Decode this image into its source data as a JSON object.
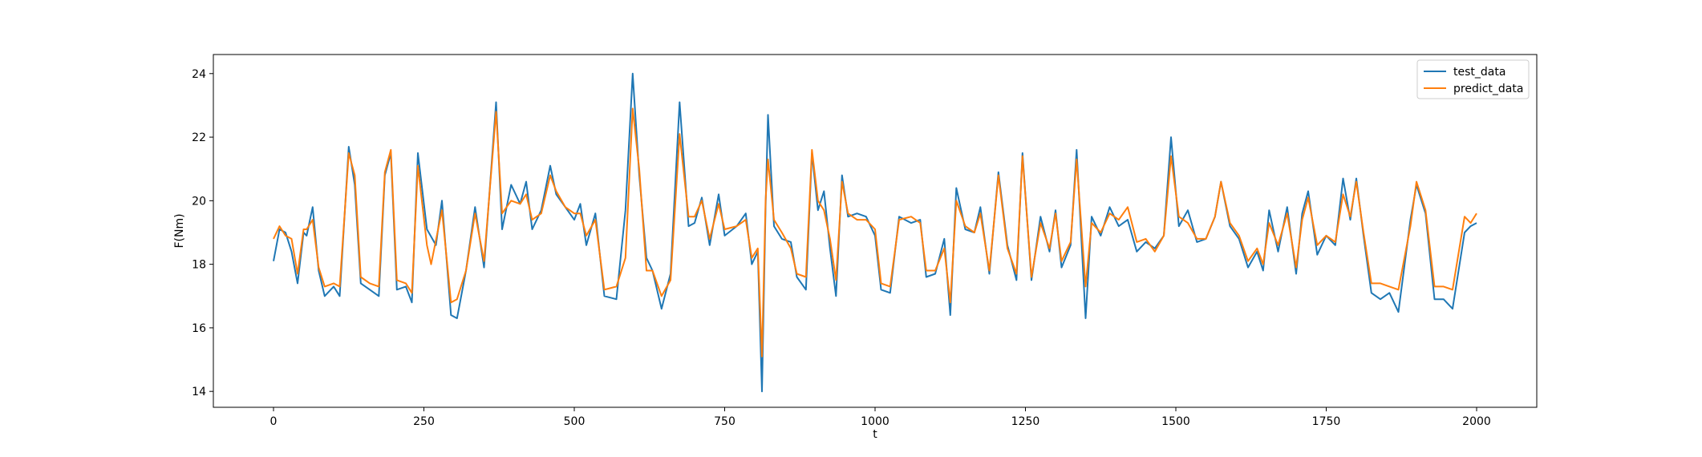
{
  "chart_data": {
    "type": "line",
    "title": "",
    "xlabel": "t",
    "ylabel": "F(Nm)",
    "xlim": [
      -100,
      2100
    ],
    "ylim": [
      13.5,
      24.6
    ],
    "xticks": [
      0,
      250,
      500,
      750,
      1000,
      1250,
      1500,
      1750,
      2000
    ],
    "xtick_labels": [
      "0",
      "250",
      "500",
      "750",
      "1000",
      "1250",
      "1500",
      "1750",
      "2000"
    ],
    "yticks": [
      14,
      16,
      18,
      20,
      22,
      24
    ],
    "ytick_labels": [
      "14",
      "16",
      "18",
      "20",
      "22",
      "24"
    ],
    "grid": false,
    "legend_position": "top-right",
    "series": [
      {
        "name": "test_data",
        "color": "#1f77b4",
        "points": [
          [
            0,
            18.1
          ],
          [
            10,
            19.1
          ],
          [
            20,
            19.0
          ],
          [
            30,
            18.4
          ],
          [
            40,
            17.4
          ],
          [
            50,
            19.0
          ],
          [
            55,
            18.9
          ],
          [
            65,
            19.8
          ],
          [
            75,
            17.8
          ],
          [
            85,
            17.0
          ],
          [
            100,
            17.3
          ],
          [
            110,
            17.0
          ],
          [
            125,
            21.7
          ],
          [
            135,
            20.5
          ],
          [
            145,
            17.4
          ],
          [
            160,
            17.2
          ],
          [
            175,
            17.0
          ],
          [
            185,
            20.8
          ],
          [
            195,
            21.5
          ],
          [
            205,
            17.2
          ],
          [
            220,
            17.3
          ],
          [
            230,
            16.8
          ],
          [
            240,
            21.5
          ],
          [
            255,
            19.1
          ],
          [
            270,
            18.6
          ],
          [
            280,
            20.0
          ],
          [
            295,
            16.4
          ],
          [
            305,
            16.3
          ],
          [
            320,
            17.8
          ],
          [
            335,
            19.8
          ],
          [
            350,
            17.9
          ],
          [
            370,
            23.1
          ],
          [
            380,
            19.1
          ],
          [
            395,
            20.5
          ],
          [
            410,
            19.9
          ],
          [
            420,
            20.6
          ],
          [
            430,
            19.1
          ],
          [
            445,
            19.7
          ],
          [
            460,
            21.1
          ],
          [
            470,
            20.2
          ],
          [
            485,
            19.8
          ],
          [
            500,
            19.4
          ],
          [
            510,
            19.9
          ],
          [
            520,
            18.6
          ],
          [
            535,
            19.6
          ],
          [
            550,
            17.0
          ],
          [
            570,
            16.9
          ],
          [
            585,
            19.7
          ],
          [
            597,
            24.0
          ],
          [
            608,
            20.8
          ],
          [
            620,
            18.2
          ],
          [
            630,
            17.8
          ],
          [
            645,
            16.6
          ],
          [
            660,
            17.7
          ],
          [
            675,
            23.1
          ],
          [
            690,
            19.2
          ],
          [
            700,
            19.3
          ],
          [
            712,
            20.1
          ],
          [
            725,
            18.6
          ],
          [
            740,
            20.2
          ],
          [
            750,
            18.9
          ],
          [
            770,
            19.2
          ],
          [
            785,
            19.6
          ],
          [
            795,
            18.0
          ],
          [
            805,
            18.4
          ],
          [
            812,
            14.0
          ],
          [
            818,
            19.8
          ],
          [
            822,
            22.7
          ],
          [
            832,
            19.2
          ],
          [
            845,
            18.8
          ],
          [
            860,
            18.7
          ],
          [
            870,
            17.6
          ],
          [
            885,
            17.2
          ],
          [
            895,
            21.5
          ],
          [
            905,
            19.7
          ],
          [
            915,
            20.3
          ],
          [
            925,
            18.5
          ],
          [
            935,
            17.0
          ],
          [
            945,
            20.8
          ],
          [
            955,
            19.5
          ],
          [
            970,
            19.6
          ],
          [
            985,
            19.5
          ],
          [
            1000,
            18.9
          ],
          [
            1010,
            17.2
          ],
          [
            1025,
            17.1
          ],
          [
            1040,
            19.5
          ],
          [
            1060,
            19.3
          ],
          [
            1075,
            19.4
          ],
          [
            1085,
            17.6
          ],
          [
            1100,
            17.7
          ],
          [
            1115,
            18.8
          ],
          [
            1125,
            16.4
          ],
          [
            1135,
            20.4
          ],
          [
            1150,
            19.1
          ],
          [
            1165,
            19.0
          ],
          [
            1175,
            19.8
          ],
          [
            1190,
            17.7
          ],
          [
            1205,
            20.9
          ],
          [
            1220,
            18.6
          ],
          [
            1235,
            17.5
          ],
          [
            1245,
            21.5
          ],
          [
            1260,
            17.5
          ],
          [
            1275,
            19.5
          ],
          [
            1290,
            18.4
          ],
          [
            1300,
            19.7
          ],
          [
            1310,
            17.9
          ],
          [
            1325,
            18.6
          ],
          [
            1335,
            21.6
          ],
          [
            1350,
            16.3
          ],
          [
            1360,
            19.5
          ],
          [
            1375,
            18.9
          ],
          [
            1390,
            19.8
          ],
          [
            1405,
            19.2
          ],
          [
            1420,
            19.4
          ],
          [
            1435,
            18.4
          ],
          [
            1450,
            18.7
          ],
          [
            1465,
            18.5
          ],
          [
            1480,
            18.9
          ],
          [
            1492,
            22.0
          ],
          [
            1505,
            19.2
          ],
          [
            1520,
            19.7
          ],
          [
            1535,
            18.7
          ],
          [
            1550,
            18.8
          ],
          [
            1565,
            19.5
          ],
          [
            1575,
            20.6
          ],
          [
            1590,
            19.2
          ],
          [
            1605,
            18.8
          ],
          [
            1620,
            17.9
          ],
          [
            1635,
            18.4
          ],
          [
            1645,
            17.8
          ],
          [
            1655,
            19.7
          ],
          [
            1670,
            18.4
          ],
          [
            1685,
            19.8
          ],
          [
            1700,
            17.7
          ],
          [
            1710,
            19.6
          ],
          [
            1720,
            20.3
          ],
          [
            1735,
            18.3
          ],
          [
            1750,
            18.9
          ],
          [
            1765,
            18.6
          ],
          [
            1778,
            20.7
          ],
          [
            1790,
            19.4
          ],
          [
            1800,
            20.7
          ],
          [
            1812,
            18.9
          ],
          [
            1825,
            17.1
          ],
          [
            1840,
            16.9
          ],
          [
            1855,
            17.1
          ],
          [
            1870,
            16.5
          ],
          [
            1890,
            19.4
          ],
          [
            1900,
            20.5
          ],
          [
            1915,
            19.6
          ],
          [
            1930,
            16.9
          ],
          [
            1945,
            16.9
          ],
          [
            1960,
            16.6
          ],
          [
            1980,
            19.0
          ],
          [
            1990,
            19.2
          ],
          [
            2000,
            19.3
          ]
        ]
      },
      {
        "name": "predict_data",
        "color": "#ff7f0e",
        "points": [
          [
            0,
            18.8
          ],
          [
            10,
            19.2
          ],
          [
            20,
            18.9
          ],
          [
            30,
            18.8
          ],
          [
            40,
            17.7
          ],
          [
            50,
            19.1
          ],
          [
            55,
            19.1
          ],
          [
            65,
            19.4
          ],
          [
            75,
            17.9
          ],
          [
            85,
            17.3
          ],
          [
            100,
            17.4
          ],
          [
            110,
            17.3
          ],
          [
            125,
            21.5
          ],
          [
            135,
            20.8
          ],
          [
            145,
            17.6
          ],
          [
            160,
            17.4
          ],
          [
            175,
            17.3
          ],
          [
            185,
            20.9
          ],
          [
            195,
            21.6
          ],
          [
            205,
            17.5
          ],
          [
            220,
            17.4
          ],
          [
            230,
            17.1
          ],
          [
            240,
            21.1
          ],
          [
            255,
            18.6
          ],
          [
            262,
            18.0
          ],
          [
            280,
            19.7
          ],
          [
            295,
            16.8
          ],
          [
            305,
            16.9
          ],
          [
            320,
            17.8
          ],
          [
            335,
            19.6
          ],
          [
            350,
            18.1
          ],
          [
            370,
            22.8
          ],
          [
            380,
            19.6
          ],
          [
            395,
            20.0
          ],
          [
            410,
            19.9
          ],
          [
            420,
            20.2
          ],
          [
            430,
            19.4
          ],
          [
            445,
            19.6
          ],
          [
            460,
            20.8
          ],
          [
            470,
            20.3
          ],
          [
            485,
            19.8
          ],
          [
            500,
            19.6
          ],
          [
            510,
            19.6
          ],
          [
            520,
            18.9
          ],
          [
            535,
            19.4
          ],
          [
            550,
            17.2
          ],
          [
            570,
            17.3
          ],
          [
            585,
            18.2
          ],
          [
            597,
            22.9
          ],
          [
            608,
            21.0
          ],
          [
            620,
            17.8
          ],
          [
            630,
            17.8
          ],
          [
            645,
            17.0
          ],
          [
            660,
            17.5
          ],
          [
            675,
            22.1
          ],
          [
            690,
            19.5
          ],
          [
            700,
            19.5
          ],
          [
            712,
            20.0
          ],
          [
            725,
            18.8
          ],
          [
            740,
            19.9
          ],
          [
            750,
            19.1
          ],
          [
            770,
            19.2
          ],
          [
            785,
            19.4
          ],
          [
            795,
            18.2
          ],
          [
            805,
            18.5
          ],
          [
            812,
            15.1
          ],
          [
            818,
            20.0
          ],
          [
            822,
            21.3
          ],
          [
            832,
            19.4
          ],
          [
            845,
            19.0
          ],
          [
            860,
            18.5
          ],
          [
            870,
            17.7
          ],
          [
            885,
            17.6
          ],
          [
            895,
            21.6
          ],
          [
            905,
            20.0
          ],
          [
            915,
            19.7
          ],
          [
            925,
            18.8
          ],
          [
            935,
            17.5
          ],
          [
            945,
            20.6
          ],
          [
            955,
            19.6
          ],
          [
            970,
            19.4
          ],
          [
            985,
            19.4
          ],
          [
            1000,
            19.1
          ],
          [
            1010,
            17.4
          ],
          [
            1025,
            17.3
          ],
          [
            1040,
            19.4
          ],
          [
            1060,
            19.5
          ],
          [
            1075,
            19.3
          ],
          [
            1085,
            17.8
          ],
          [
            1100,
            17.8
          ],
          [
            1115,
            18.5
          ],
          [
            1125,
            16.8
          ],
          [
            1135,
            20.0
          ],
          [
            1150,
            19.2
          ],
          [
            1165,
            19.0
          ],
          [
            1175,
            19.6
          ],
          [
            1190,
            17.8
          ],
          [
            1205,
            20.8
          ],
          [
            1220,
            18.5
          ],
          [
            1235,
            17.7
          ],
          [
            1245,
            21.4
          ],
          [
            1260,
            17.6
          ],
          [
            1275,
            19.3
          ],
          [
            1290,
            18.5
          ],
          [
            1300,
            19.6
          ],
          [
            1310,
            18.1
          ],
          [
            1325,
            18.7
          ],
          [
            1335,
            21.3
          ],
          [
            1350,
            17.3
          ],
          [
            1360,
            19.3
          ],
          [
            1375,
            19.0
          ],
          [
            1390,
            19.6
          ],
          [
            1405,
            19.4
          ],
          [
            1420,
            19.8
          ],
          [
            1435,
            18.7
          ],
          [
            1450,
            18.8
          ],
          [
            1465,
            18.4
          ],
          [
            1480,
            18.9
          ],
          [
            1492,
            21.4
          ],
          [
            1505,
            19.5
          ],
          [
            1520,
            19.3
          ],
          [
            1535,
            18.8
          ],
          [
            1550,
            18.8
          ],
          [
            1565,
            19.5
          ],
          [
            1575,
            20.6
          ],
          [
            1590,
            19.3
          ],
          [
            1605,
            18.9
          ],
          [
            1620,
            18.1
          ],
          [
            1635,
            18.5
          ],
          [
            1645,
            18.0
          ],
          [
            1655,
            19.3
          ],
          [
            1670,
            18.6
          ],
          [
            1685,
            19.6
          ],
          [
            1700,
            17.9
          ],
          [
            1710,
            19.4
          ],
          [
            1720,
            20.1
          ],
          [
            1735,
            18.6
          ],
          [
            1750,
            18.9
          ],
          [
            1765,
            18.7
          ],
          [
            1778,
            20.2
          ],
          [
            1790,
            19.5
          ],
          [
            1800,
            20.6
          ],
          [
            1812,
            19.0
          ],
          [
            1825,
            17.4
          ],
          [
            1840,
            17.4
          ],
          [
            1855,
            17.3
          ],
          [
            1870,
            17.2
          ],
          [
            1890,
            19.2
          ],
          [
            1900,
            20.6
          ],
          [
            1915,
            19.7
          ],
          [
            1930,
            17.3
          ],
          [
            1945,
            17.3
          ],
          [
            1960,
            17.2
          ],
          [
            1980,
            19.5
          ],
          [
            1990,
            19.3
          ],
          [
            2000,
            19.6
          ]
        ]
      }
    ]
  }
}
